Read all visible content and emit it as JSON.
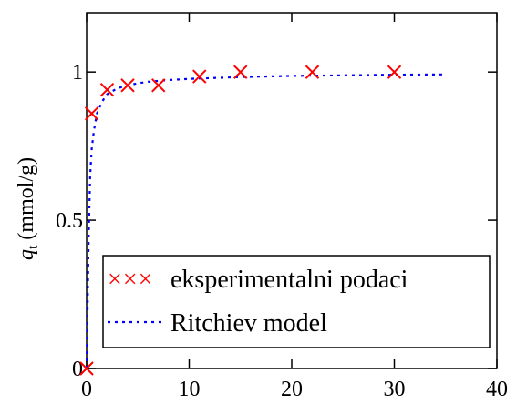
{
  "chart_data": {
    "type": "scatter",
    "title": "",
    "xlabel": "",
    "ylabel": {
      "symbol": "q",
      "subscript": "t",
      "unit": "(mmol/g)"
    },
    "xlim": [
      0,
      40
    ],
    "ylim": [
      0,
      1.2
    ],
    "x_ticks": [
      0,
      10,
      20,
      30,
      40
    ],
    "x_tick_labels": [
      "0",
      "10",
      "20",
      "30",
      "40"
    ],
    "y_ticks": [
      0,
      0.5,
      1
    ],
    "y_tick_labels": [
      "0",
      "0.5",
      "1"
    ],
    "grid": false,
    "legend_position": "bottom-left",
    "colors": {
      "experimental": "#ff0000",
      "model": "#0000ff",
      "axes": "#000000"
    },
    "series": [
      {
        "name": "eksperimentalni podaci",
        "style": "markers",
        "marker": "x",
        "x": [
          0,
          0.5,
          2,
          4,
          7,
          11,
          15,
          22,
          30
        ],
        "y": [
          0,
          0.86,
          0.94,
          0.955,
          0.955,
          0.985,
          1.0,
          1.0,
          1.0
        ]
      },
      {
        "name": "Ritchiev model",
        "style": "dotted-line",
        "x": [
          0,
          0.2,
          0.35,
          0.5,
          0.7,
          1,
          1.5,
          2,
          3,
          4,
          5,
          6,
          8,
          10,
          15,
          20,
          25,
          30,
          35
        ],
        "y": [
          0,
          0.45,
          0.65,
          0.74,
          0.8,
          0.86,
          0.9,
          0.925,
          0.945,
          0.955,
          0.962,
          0.967,
          0.973,
          0.977,
          0.983,
          0.987,
          0.989,
          0.991,
          0.992
        ]
      }
    ],
    "legend": [
      {
        "label": "eksperimentalni podaci",
        "symbol": "×××"
      },
      {
        "label": "Ritchiev model",
        "symbol": "dots"
      }
    ]
  }
}
